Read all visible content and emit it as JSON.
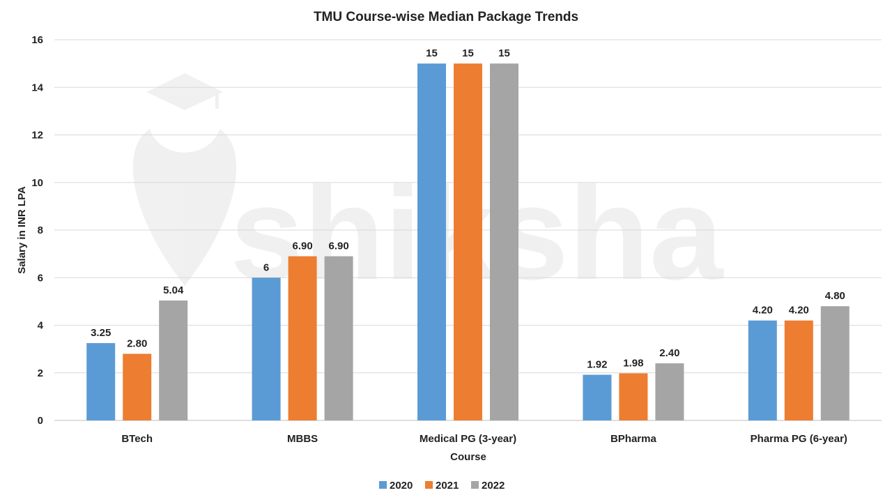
{
  "watermark": {
    "text": "shiksha"
  },
  "chart_data": {
    "type": "bar",
    "title": "TMU Course-wise Median Package Trends",
    "xlabel": "Course",
    "ylabel": "Salary in INR LPA",
    "ylim": [
      0,
      16
    ],
    "yticks": [
      0,
      2,
      4,
      6,
      8,
      10,
      12,
      14,
      16
    ],
    "grid": true,
    "legend_position": "bottom",
    "categories": [
      "BTech",
      "MBBS",
      "Medical PG (3-year)",
      "BPharma",
      "Pharma PG (6-year)"
    ],
    "series": [
      {
        "name": "2020",
        "color": "#5b9bd5",
        "values": [
          3.25,
          6,
          15,
          1.92,
          4.2
        ],
        "labels": [
          "3.25",
          "6",
          "15",
          "1.92",
          "4.20"
        ]
      },
      {
        "name": "2021",
        "color": "#ed7d31",
        "values": [
          2.8,
          6.9,
          15,
          1.98,
          4.2
        ],
        "labels": [
          "2.80",
          "6.90",
          "15",
          "1.98",
          "4.20"
        ]
      },
      {
        "name": "2022",
        "color": "#a5a5a5",
        "values": [
          5.04,
          6.9,
          15,
          2.4,
          4.8
        ],
        "labels": [
          "5.04",
          "6.90",
          "15",
          "2.40",
          "4.80"
        ]
      }
    ]
  }
}
